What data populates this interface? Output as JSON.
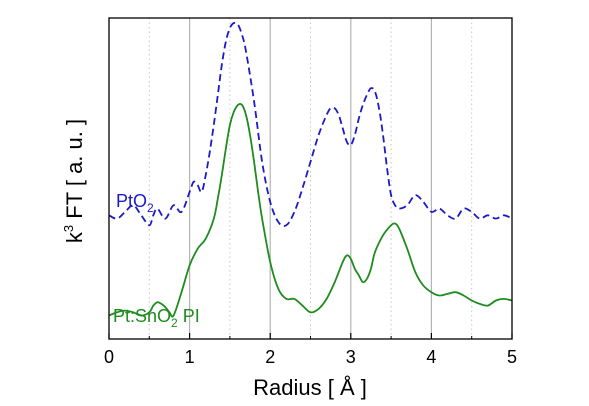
{
  "chart_data": {
    "type": "line",
    "xlabel": "Radius [ Å ]",
    "ylabel_parts": {
      "k": "k",
      "exp": "3",
      "rest": " FT [ a. u. ]"
    },
    "xlim": [
      0,
      5
    ],
    "ylim": [
      -0.6,
      9.0
    ],
    "x_ticks": [
      "0",
      "1",
      "2",
      "3",
      "4",
      "5"
    ],
    "minor_x_ticks": [
      0.5,
      1.5,
      2.5,
      3.5,
      4.5
    ],
    "grid": "vertical",
    "y_tick_labels": false,
    "legend": "inline",
    "colors": {
      "pto2": "#1a1ac8",
      "pt_sno2": "#1e8c1e"
    },
    "series": [
      {
        "name": "PtO2",
        "label_main": "PtO",
        "label_sub": "2",
        "style": "dashed",
        "x": [
          0,
          0.1,
          0.2,
          0.3,
          0.4,
          0.5,
          0.55,
          0.6,
          0.7,
          0.8,
          0.9,
          1.0,
          1.05,
          1.1,
          1.15,
          1.2,
          1.25,
          1.3,
          1.35,
          1.4,
          1.45,
          1.5,
          1.55,
          1.6,
          1.65,
          1.7,
          1.8,
          1.9,
          2.0,
          2.1,
          2.2,
          2.3,
          2.4,
          2.5,
          2.6,
          2.7,
          2.75,
          2.8,
          2.85,
          2.9,
          2.95,
          3.0,
          3.05,
          3.1,
          3.15,
          3.2,
          3.25,
          3.3,
          3.35,
          3.4,
          3.45,
          3.5,
          3.55,
          3.6,
          3.7,
          3.8,
          3.9,
          4.0,
          4.1,
          4.2,
          4.3,
          4.4,
          4.5,
          4.6,
          4.7,
          4.8,
          4.9,
          5.0
        ],
        "values": [
          3.1,
          3.0,
          3.2,
          3.4,
          3.1,
          2.8,
          3.1,
          3.3,
          3.0,
          3.4,
          3.2,
          3.8,
          4.1,
          4.0,
          3.8,
          4.3,
          5.0,
          5.8,
          6.7,
          7.6,
          8.3,
          8.7,
          8.85,
          8.8,
          8.5,
          8.0,
          6.5,
          4.7,
          3.5,
          2.9,
          2.8,
          3.2,
          3.9,
          4.7,
          5.5,
          6.1,
          6.3,
          6.3,
          6.1,
          5.7,
          5.3,
          5.2,
          5.5,
          6.0,
          6.4,
          6.7,
          6.9,
          6.8,
          6.3,
          5.5,
          4.5,
          3.7,
          3.4,
          3.3,
          3.4,
          3.7,
          3.5,
          3.2,
          3.3,
          3.1,
          3.0,
          3.3,
          3.2,
          3.0,
          3.1,
          3.0,
          3.1,
          3.0
        ]
      },
      {
        "name": "Pt:SnO2 PI",
        "label_main": "Pt:SnO",
        "label_sub": "2",
        "label_tail": " PI",
        "style": "solid",
        "x": [
          0,
          0.1,
          0.2,
          0.3,
          0.4,
          0.5,
          0.55,
          0.6,
          0.65,
          0.7,
          0.75,
          0.8,
          0.9,
          1.0,
          1.1,
          1.2,
          1.3,
          1.35,
          1.4,
          1.45,
          1.5,
          1.55,
          1.6,
          1.65,
          1.7,
          1.75,
          1.8,
          1.85,
          1.9,
          2.0,
          2.1,
          2.2,
          2.3,
          2.4,
          2.5,
          2.6,
          2.7,
          2.8,
          2.9,
          2.95,
          3.0,
          3.05,
          3.1,
          3.15,
          3.2,
          3.25,
          3.3,
          3.4,
          3.5,
          3.55,
          3.6,
          3.7,
          3.8,
          3.9,
          4.0,
          4.1,
          4.2,
          4.3,
          4.4,
          4.5,
          4.6,
          4.7,
          4.8,
          4.9,
          5.0
        ],
        "values": [
          0.1,
          0.2,
          0.25,
          0.2,
          0.1,
          0.2,
          0.4,
          0.5,
          0.45,
          0.35,
          0.2,
          0.1,
          0.8,
          1.6,
          2.1,
          2.4,
          3.0,
          3.6,
          4.3,
          5.1,
          5.8,
          6.2,
          6.4,
          6.4,
          6.1,
          5.5,
          4.7,
          3.8,
          3.0,
          1.7,
          0.9,
          0.6,
          0.6,
          0.4,
          0.2,
          0.3,
          0.6,
          1.1,
          1.7,
          1.9,
          1.8,
          1.5,
          1.3,
          1.1,
          1.2,
          1.5,
          2.0,
          2.5,
          2.8,
          2.85,
          2.7,
          2.1,
          1.4,
          1.0,
          0.8,
          0.7,
          0.75,
          0.8,
          0.7,
          0.55,
          0.45,
          0.4,
          0.55,
          0.6,
          0.55
        ]
      }
    ]
  }
}
